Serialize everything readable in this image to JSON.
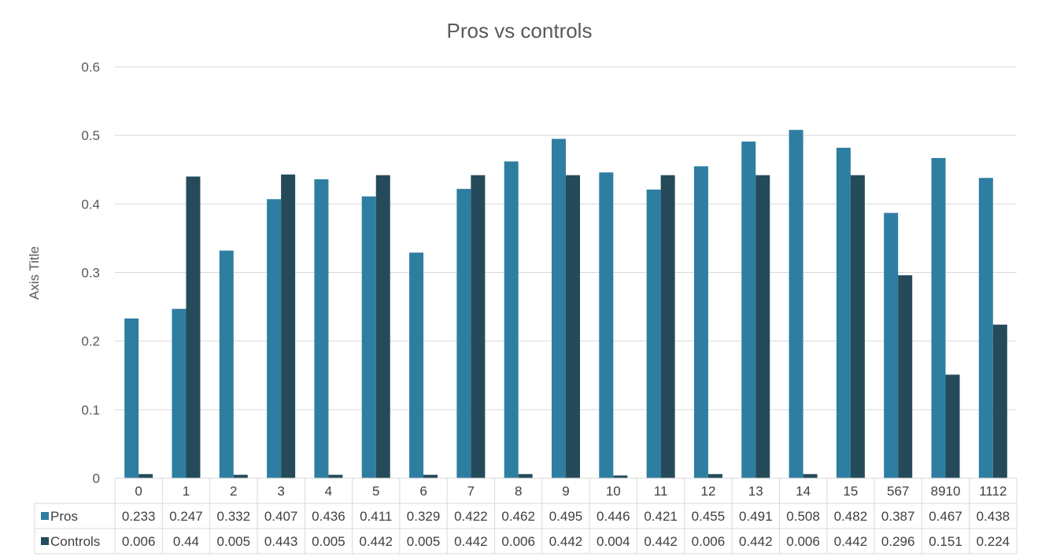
{
  "chart_data": {
    "type": "bar",
    "title": "Pros vs controls",
    "ylabel": "Axis Title",
    "xlabel": "",
    "ylim": [
      0,
      0.6
    ],
    "yticks": [
      "0",
      "0.1",
      "0.2",
      "0.3",
      "0.4",
      "0.5",
      "0.6"
    ],
    "grid": true,
    "legend": "data-table",
    "categories": [
      "0",
      "1",
      "2",
      "3",
      "4",
      "5",
      "6",
      "7",
      "8",
      "9",
      "10",
      "11",
      "12",
      "13",
      "14",
      "15",
      "567",
      "8910",
      "1112"
    ],
    "series": [
      {
        "name": "Pros",
        "color": "#2e7ea1",
        "values": [
          0.233,
          0.247,
          0.332,
          0.407,
          0.436,
          0.411,
          0.329,
          0.422,
          0.462,
          0.495,
          0.446,
          0.421,
          0.455,
          0.491,
          0.508,
          0.482,
          0.387,
          0.467,
          0.438
        ],
        "labels": [
          "0.233",
          "0.247",
          "0.332",
          "0.407",
          "0.436",
          "0.411",
          "0.329",
          "0.422",
          "0.462",
          "0.495",
          "0.446",
          "0.421",
          "0.455",
          "0.491",
          "0.508",
          "0.482",
          "0.387",
          "0.467",
          "0.438"
        ]
      },
      {
        "name": "Controls",
        "color": "#254b5a",
        "values": [
          0.006,
          0.44,
          0.005,
          0.443,
          0.005,
          0.442,
          0.005,
          0.442,
          0.006,
          0.442,
          0.004,
          0.442,
          0.006,
          0.442,
          0.006,
          0.442,
          0.296,
          0.151,
          0.224
        ],
        "labels": [
          "0.006",
          "0.44",
          "0.005",
          "0.443",
          "0.005",
          "0.442",
          "0.005",
          "0.442",
          "0.006",
          "0.442",
          "0.004",
          "0.442",
          "0.006",
          "0.442",
          "0.006",
          "0.442",
          "0.296",
          "0.151",
          "0.224"
        ]
      }
    ]
  }
}
